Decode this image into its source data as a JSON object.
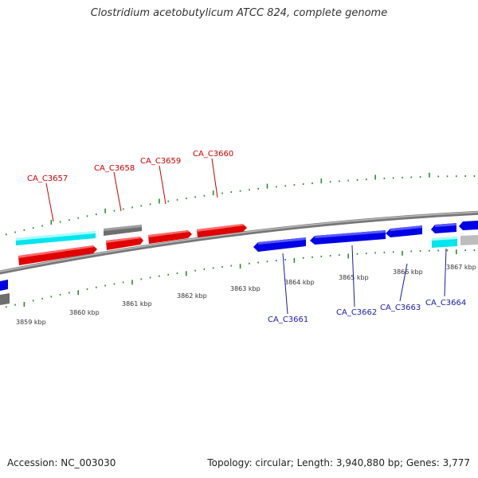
{
  "title": "Clostridium acetobutylicum ATCC 824, complete genome",
  "footer": {
    "accession": "Accession: NC_003030",
    "topology": "Topology: circular; Length: 3,940,880 bp; Genes: 3,777"
  },
  "colors": {
    "forward_label": "#cc0000",
    "reverse_label": "#1a1aa8",
    "tick": "#2e8b2e",
    "backbone": "#8c8c8c"
  },
  "kbp_labels": [
    "3859 kbp",
    "3860 kbp",
    "3861 kbp",
    "3862 kbp",
    "3863 kbp",
    "3864 kbp",
    "3865 kbp",
    "3866 kbp",
    "3867 kbp"
  ],
  "gene_labels_forward": [
    "CA_C3657",
    "CA_C3658",
    "CA_C3659",
    "CA_C3660"
  ],
  "gene_labels_reverse": [
    "CA_C3661",
    "CA_C3662",
    "CA_C3663",
    "CA_C3664"
  ]
}
